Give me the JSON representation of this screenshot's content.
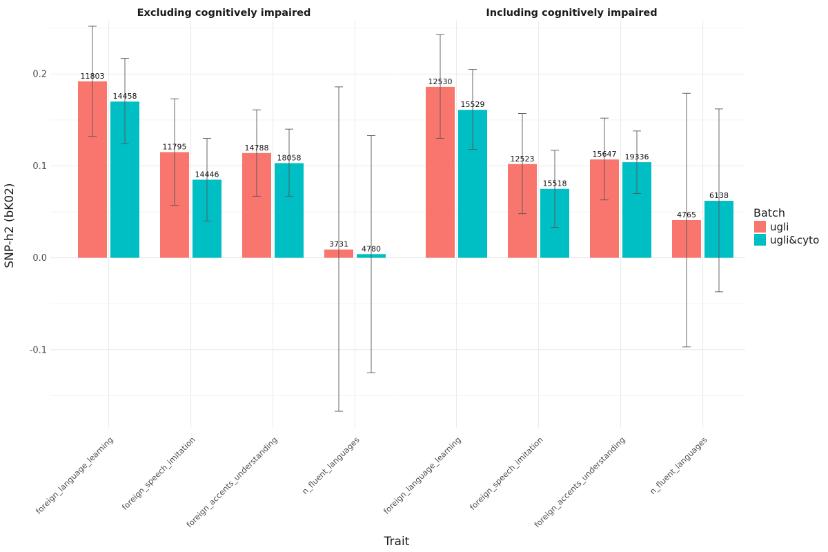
{
  "chart_data": {
    "type": "bar",
    "facets": [
      {
        "title": "Excluding cognitively impaired"
      },
      {
        "title": "Including cognitively impaired"
      }
    ],
    "categories": [
      "foreign_language_learning",
      "foreign_speech_imitation",
      "foreign_accents_understanding",
      "n_fluent_languages"
    ],
    "xlabel": "Trait",
    "ylabel": "SNP-h2 (bK02)",
    "ylim": [
      -0.185,
      0.258
    ],
    "yticks": [
      -0.1,
      0.0,
      0.1,
      0.2
    ],
    "ytick_labels": [
      "-0.1",
      "0.0",
      "0.1",
      "0.2"
    ],
    "grid": true,
    "legend": {
      "title": "Batch",
      "position": "right",
      "items": [
        {
          "name": "ugli",
          "color": "#F8766D"
        },
        {
          "name": "ugli&cyto",
          "color": "#00BFC4"
        }
      ]
    },
    "series": [
      {
        "name": "ugli",
        "color": "#F8766D",
        "facet_values": [
          {
            "values": [
              0.192,
              0.115,
              0.114,
              0.009
            ],
            "err_low": [
              0.132,
              0.057,
              0.067,
              -0.167
            ],
            "err_high": [
              0.252,
              0.173,
              0.161,
              0.186
            ],
            "labels": [
              "11803",
              "11795",
              "14788",
              "3731"
            ]
          },
          {
            "values": [
              0.186,
              0.102,
              0.107,
              0.041
            ],
            "err_low": [
              0.13,
              0.048,
              0.063,
              -0.097
            ],
            "err_high": [
              0.243,
              0.157,
              0.152,
              0.179
            ],
            "labels": [
              "12530",
              "12523",
              "15647",
              "4765"
            ]
          }
        ]
      },
      {
        "name": "ugli&cyto",
        "color": "#00BFC4",
        "facet_values": [
          {
            "values": [
              0.17,
              0.085,
              0.103,
              0.004
            ],
            "err_low": [
              0.124,
              0.04,
              0.067,
              -0.125
            ],
            "err_high": [
              0.217,
              0.13,
              0.14,
              0.133
            ],
            "labels": [
              "14458",
              "14446",
              "18058",
              "4780"
            ]
          },
          {
            "values": [
              0.161,
              0.075,
              0.104,
              0.062
            ],
            "err_low": [
              0.118,
              0.033,
              0.07,
              -0.037
            ],
            "err_high": [
              0.205,
              0.117,
              0.138,
              0.162
            ],
            "labels": [
              "15529",
              "15518",
              "19336",
              "6138"
            ]
          }
        ]
      }
    ]
  }
}
